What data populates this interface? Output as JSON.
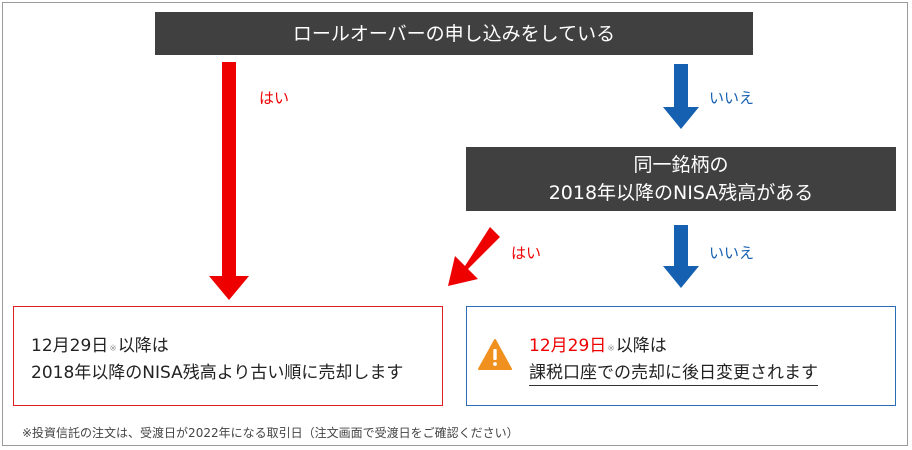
{
  "question1": "ロールオーバーの申し込みをしている",
  "question2": {
    "line1": "同一銘柄の",
    "line2": "2018年以降のNISA残高がある"
  },
  "labels": {
    "yes1": "はい",
    "no1": "いいえ",
    "yes2": "はい",
    "no2": "いいえ"
  },
  "result_left": {
    "date": "12月29日",
    "note_mark": "※",
    "after_date": "以降は",
    "line2": "2018年以降のNISA残高より古い順に売却します"
  },
  "result_right": {
    "date": "12月29日",
    "note_mark": "※",
    "after_date": "以降は",
    "line2": "課税口座での売却に後日変更されます"
  },
  "footnote": "※投資信託の注文は、受渡日が2022年になる取引日（注文画面で受渡日をご確認ください）",
  "colors": {
    "dark_box": "#404040",
    "yes_arrow": "#ee0000",
    "no_arrow": "#1560b0",
    "warning": "#f0901e"
  }
}
